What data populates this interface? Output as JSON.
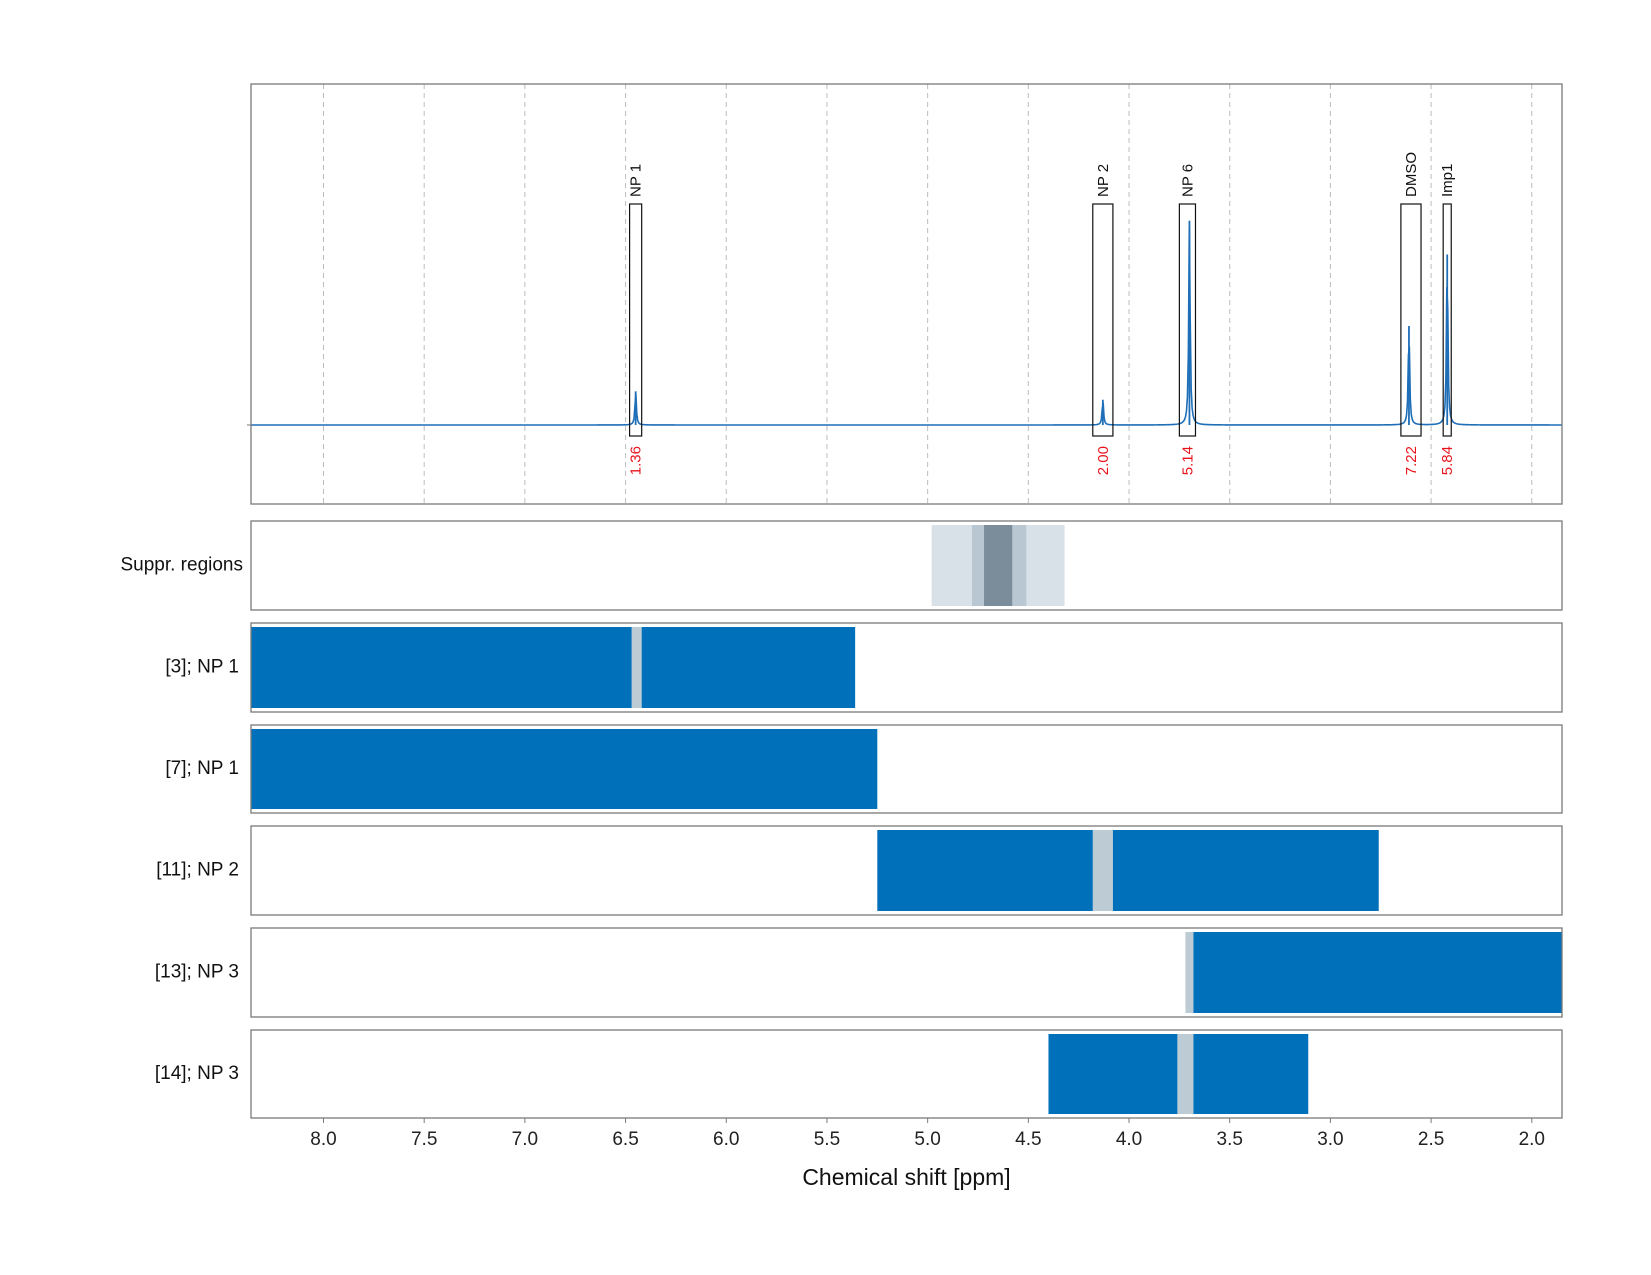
{
  "chart_data": {
    "type": "spectrum",
    "xlabel": "Chemical shift [ppm]",
    "xlim": [
      8.36,
      1.85
    ],
    "xticks": [
      "8.0",
      "7.5",
      "7.0",
      "6.5",
      "6.0",
      "5.5",
      "5.0",
      "4.5",
      "4.0",
      "3.5",
      "3.0",
      "2.5",
      "2.0"
    ],
    "grid": true,
    "spectrum": {
      "color": "#1f6fb8",
      "peaks": [
        {
          "ppm": 6.45,
          "height": 0.16
        },
        {
          "ppm": 4.13,
          "height": 0.12
        },
        {
          "ppm": 3.7,
          "height": 0.97
        },
        {
          "ppm": 2.61,
          "height": 0.47
        },
        {
          "ppm": 2.42,
          "height": 0.81
        }
      ]
    },
    "annotations": [
      {
        "label": "NP 1",
        "value": "1.36",
        "from": 6.48,
        "to": 6.42
      },
      {
        "label": "NP 2",
        "value": "2.00",
        "from": 4.18,
        "to": 4.08
      },
      {
        "label": "NP 6",
        "value": "5.14",
        "from": 3.75,
        "to": 3.67
      },
      {
        "label": "DMSO",
        "value": "7.22",
        "from": 2.65,
        "to": 2.55
      },
      {
        "label": "Imp1",
        "value": "5.84",
        "from": 2.44,
        "to": 2.4
      }
    ],
    "suppression": {
      "label": "Suppr. regions",
      "bands": [
        {
          "from": 4.98,
          "to": 4.32,
          "color": "#d9e1e8"
        },
        {
          "from": 4.78,
          "to": 4.51,
          "color": "#b9c7d2"
        },
        {
          "from": 4.72,
          "to": 4.58,
          "color": "#7b8d9b"
        }
      ]
    },
    "tracks": [
      {
        "label": "[3]; NP 1",
        "blue": [
          [
            8.36,
            6.47
          ],
          [
            6.42,
            5.36
          ]
        ],
        "gray": [
          [
            6.47,
            6.42
          ]
        ]
      },
      {
        "label": "[7]; NP 1",
        "blue": [
          [
            8.36,
            5.25
          ]
        ],
        "gray": []
      },
      {
        "label": "[11]; NP 2",
        "blue": [
          [
            5.25,
            4.18
          ],
          [
            4.08,
            2.76
          ]
        ],
        "gray": [
          [
            4.18,
            4.08
          ]
        ]
      },
      {
        "label": "[13]; NP 3",
        "blue": [
          [
            3.68,
            1.85
          ]
        ],
        "gray": [
          [
            3.72,
            3.68
          ]
        ]
      },
      {
        "label": "[14]; NP 3",
        "blue": [
          [
            4.4,
            3.76
          ],
          [
            3.68,
            3.11
          ]
        ],
        "gray": [
          [
            3.76,
            3.68
          ]
        ]
      }
    ],
    "colors": {
      "bar": "#0070bb",
      "gap": "#bccbd4",
      "annotation_value": "#e8141d"
    }
  }
}
